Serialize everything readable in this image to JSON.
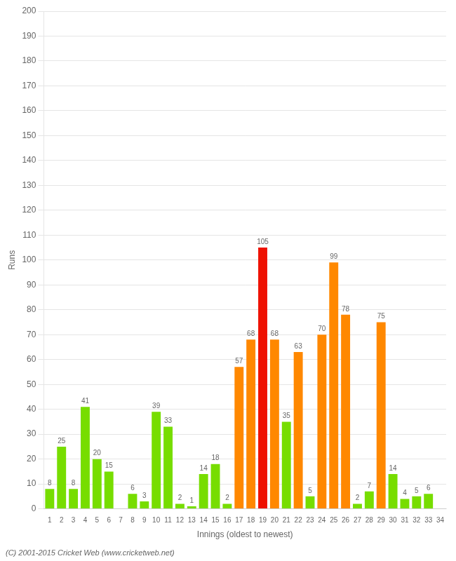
{
  "chart_data": {
    "type": "bar",
    "xlabel": "Innings (oldest to newest)",
    "ylabel": "Runs",
    "categories": [
      "1",
      "2",
      "3",
      "4",
      "5",
      "6",
      "7",
      "8",
      "9",
      "10",
      "11",
      "12",
      "13",
      "14",
      "15",
      "16",
      "17",
      "18",
      "19",
      "20",
      "21",
      "22",
      "23",
      "24",
      "25",
      "26",
      "27",
      "28",
      "29",
      "30",
      "31",
      "32",
      "33",
      "34"
    ],
    "values": [
      8,
      25,
      8,
      41,
      20,
      15,
      0,
      6,
      3,
      39,
      33,
      2,
      1,
      14,
      18,
      2,
      57,
      68,
      105,
      68,
      35,
      63,
      5,
      70,
      99,
      78,
      2,
      7,
      75,
      14,
      4,
      5,
      6,
      0
    ],
    "value_labels": [
      "8",
      "25",
      "8",
      "41",
      "20",
      "15",
      null,
      "6",
      "3",
      "39",
      "33",
      "2",
      "1",
      "14",
      "18",
      "2",
      "57",
      "68",
      "105",
      "68",
      "35",
      "63",
      "5",
      "70",
      "99",
      "78",
      "2",
      "7",
      "75",
      "14",
      "4",
      "5",
      "6",
      null
    ],
    "colors": [
      "#77dd00",
      "#77dd00",
      "#77dd00",
      "#77dd00",
      "#77dd00",
      "#77dd00",
      "#77dd00",
      "#77dd00",
      "#77dd00",
      "#77dd00",
      "#77dd00",
      "#77dd00",
      "#77dd00",
      "#77dd00",
      "#77dd00",
      "#77dd00",
      "#ff8800",
      "#ff8800",
      "#ee1100",
      "#ff8800",
      "#77dd00",
      "#ff8800",
      "#77dd00",
      "#ff8800",
      "#ff8800",
      "#ff8800",
      "#77dd00",
      "#77dd00",
      "#ff8800",
      "#77dd00",
      "#77dd00",
      "#77dd00",
      "#77dd00",
      "#77dd00"
    ],
    "ylim": [
      0,
      200
    ],
    "yticks": [
      0,
      10,
      20,
      30,
      40,
      50,
      60,
      70,
      80,
      90,
      100,
      110,
      120,
      130,
      140,
      150,
      160,
      170,
      180,
      190,
      200
    ],
    "grid": true,
    "data_labels": true,
    "annotations": [
      "(C) 2001-2015 Cricket Web (www.cricketweb.net)"
    ]
  }
}
